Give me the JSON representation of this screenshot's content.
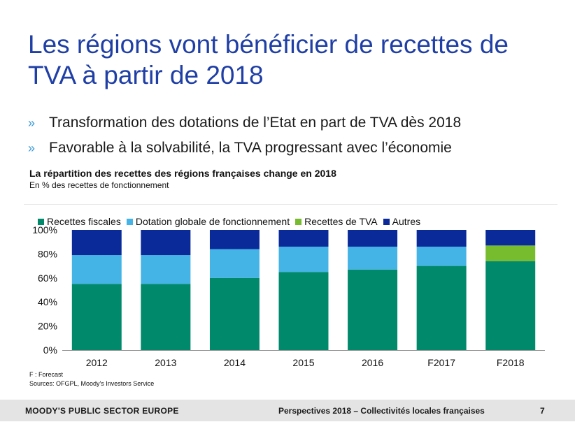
{
  "slide": {
    "title": "Les régions vont bénéficier de recettes de TVA à partir de 2018",
    "bullet_marker": "»",
    "bullets": [
      "Transformation des dotations de l’Etat en part de TVA dès 2018",
      "Favorable à la solvabilité, la TVA progressant avec l’économie"
    ],
    "notes": {
      "forecast": "F : Forecast",
      "sources": "Sources: OFGPL, Moody's Investors Service"
    }
  },
  "footer": {
    "brand": "MOODY'S PUBLIC SECTOR EUROPE",
    "document": "Perspectives 2018 – Collectivités locales françaises",
    "page": "7"
  },
  "chart_data": {
    "type": "bar",
    "stacked": true,
    "title": "La répartition des recettes des régions françaises change en 2018",
    "subtitle": "En % des recettes de fonctionnement",
    "xlabel": "",
    "ylabel": "",
    "categories": [
      "2012",
      "2013",
      "2014",
      "2015",
      "2016",
      "F2017",
      "F2018"
    ],
    "ylim": [
      0,
      100
    ],
    "yticks": [
      "0%",
      "20%",
      "40%",
      "60%",
      "80%",
      "100%"
    ],
    "grid": false,
    "legend": "top",
    "series": [
      {
        "name": "Recettes fiscales",
        "color": "#00896b",
        "values": [
          55,
          55,
          60,
          65,
          67,
          70,
          74
        ]
      },
      {
        "name": "Dotation globale de fonctionnement",
        "color": "#44b3e6",
        "values": [
          24,
          24,
          24,
          21,
          19,
          16,
          0
        ]
      },
      {
        "name": "Recettes de TVA",
        "color": "#77bc2e",
        "values": [
          0,
          0,
          0,
          0,
          0,
          0,
          13
        ]
      },
      {
        "name": "Autres",
        "color": "#0b2a9a",
        "values": [
          21,
          21,
          16,
          14,
          14,
          14,
          13
        ]
      }
    ]
  }
}
